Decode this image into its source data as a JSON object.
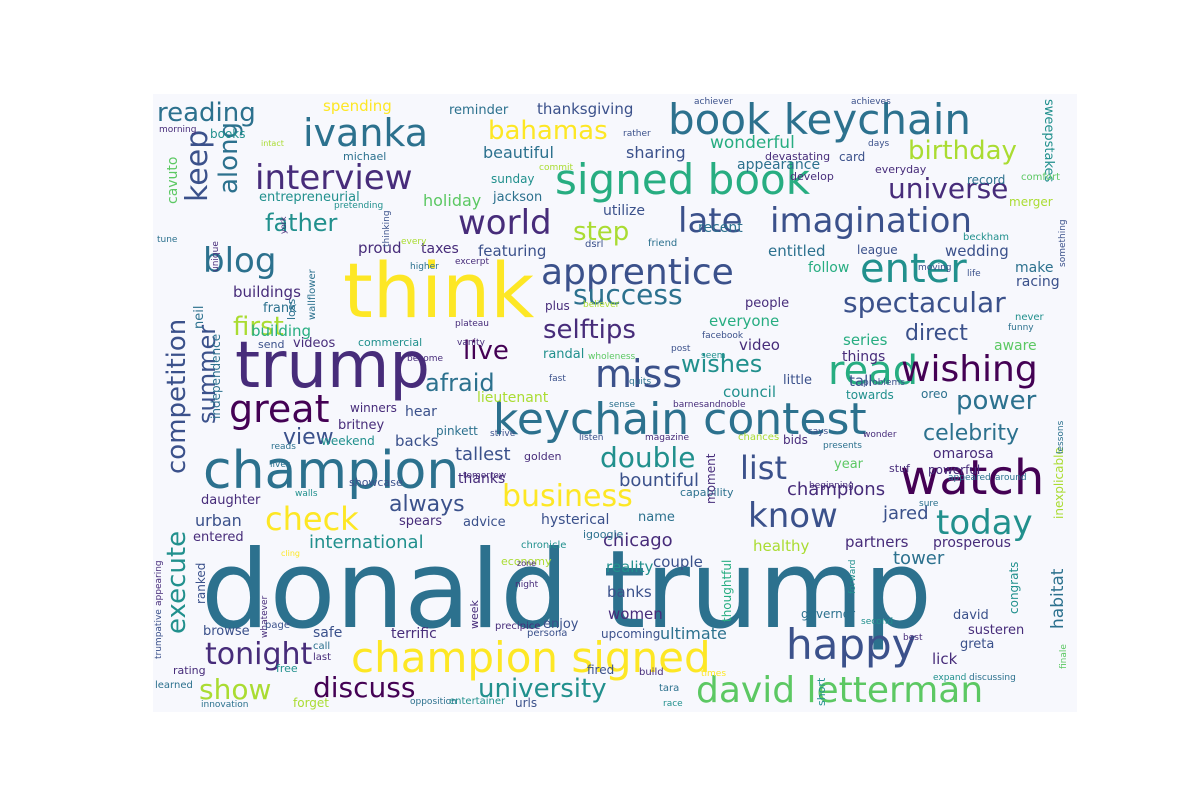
{
  "palette": [
    "#440154",
    "#472c7a",
    "#3b518b",
    "#2c718e",
    "#21908d",
    "#27ad81",
    "#5cc863",
    "#aadc32",
    "#fde725"
  ],
  "words": [
    {
      "text": "donald trump",
      "c": 3
    },
    {
      "text": "think",
      "c": 8
    },
    {
      "text": "trump",
      "c": 1
    },
    {
      "text": "champion",
      "c": 3
    },
    {
      "text": "keychain contest",
      "c": 3
    },
    {
      "text": "watch",
      "c": 0
    },
    {
      "text": "champion signed",
      "c": 8
    },
    {
      "text": "signed book",
      "c": 5
    },
    {
      "text": "book keychain",
      "c": 3
    },
    {
      "text": "happy",
      "c": 2
    },
    {
      "text": "david letterman",
      "c": 6
    },
    {
      "text": "apprentice",
      "c": 2
    },
    {
      "text": "ivanka",
      "c": 3
    },
    {
      "text": "interview",
      "c": 1
    },
    {
      "text": "enter",
      "c": 4
    },
    {
      "text": "read",
      "c": 5
    },
    {
      "text": "great",
      "c": 0
    },
    {
      "text": "wishing",
      "c": 0
    },
    {
      "text": "imagination",
      "c": 2
    },
    {
      "text": "world",
      "c": 1
    },
    {
      "text": "late",
      "c": 2
    },
    {
      "text": "blog",
      "c": 3
    },
    {
      "text": "miss",
      "c": 2
    },
    {
      "text": "today",
      "c": 4
    },
    {
      "text": "know",
      "c": 2
    },
    {
      "text": "business",
      "c": 8
    },
    {
      "text": "check",
      "c": 8
    },
    {
      "text": "list",
      "c": 2
    },
    {
      "text": "double",
      "c": 4
    },
    {
      "text": "competition",
      "c": 2
    },
    {
      "text": "execute",
      "c": 4
    },
    {
      "text": "keep",
      "c": 2
    },
    {
      "text": "reading",
      "c": 3
    },
    {
      "text": "success",
      "c": 3
    },
    {
      "text": "spectacular",
      "c": 2
    },
    {
      "text": "universe",
      "c": 1
    },
    {
      "text": "tonight",
      "c": 1
    },
    {
      "text": "discuss",
      "c": 0
    },
    {
      "text": "show",
      "c": 7
    },
    {
      "text": "university",
      "c": 4
    },
    {
      "text": "bahamas",
      "c": 8
    },
    {
      "text": "birthday",
      "c": 7
    },
    {
      "text": "selftips",
      "c": 1
    },
    {
      "text": "live",
      "c": 0
    },
    {
      "text": "afraid",
      "c": 3
    },
    {
      "text": "wishes",
      "c": 4
    },
    {
      "text": "power",
      "c": 3
    },
    {
      "text": "along",
      "c": 3
    },
    {
      "text": "father",
      "c": 4
    },
    {
      "text": "step",
      "c": 7
    },
    {
      "text": "first",
      "c": 7
    },
    {
      "text": "summer",
      "c": 2
    },
    {
      "text": "view",
      "c": 2
    },
    {
      "text": "always",
      "c": 2
    },
    {
      "text": "celebrity",
      "c": 3
    },
    {
      "text": "direct",
      "c": 2
    },
    {
      "text": "champions",
      "c": 1
    },
    {
      "text": "jared",
      "c": 2
    },
    {
      "text": "tower",
      "c": 3
    },
    {
      "text": "habitat",
      "c": 3
    },
    {
      "text": "ultimate",
      "c": 3
    },
    {
      "text": "chicago",
      "c": 1
    },
    {
      "text": "bountiful",
      "c": 2
    },
    {
      "text": "tallest",
      "c": 2
    },
    {
      "text": "international",
      "c": 4
    },
    {
      "text": "urban",
      "c": 2
    },
    {
      "text": "beautiful",
      "c": 3
    },
    {
      "text": "holiday",
      "c": 6
    },
    {
      "text": "wonderful",
      "c": 5
    },
    {
      "text": "sharing",
      "c": 2
    },
    {
      "text": "spending",
      "c": 8
    },
    {
      "text": "thanksgiving",
      "c": 2
    },
    {
      "text": "reminder",
      "c": 3
    },
    {
      "text": "achiever",
      "c": 2
    },
    {
      "text": "achieves",
      "c": 2
    },
    {
      "text": "morning",
      "c": 1
    },
    {
      "text": "books",
      "c": 4
    },
    {
      "text": "intact",
      "c": 7
    },
    {
      "text": "michael",
      "c": 3
    },
    {
      "text": "cavuto",
      "c": 6
    },
    {
      "text": "entrepreneurial",
      "c": 4
    },
    {
      "text": "sunday",
      "c": 4
    },
    {
      "text": "jackson",
      "c": 3
    },
    {
      "text": "card",
      "c": 2
    },
    {
      "text": "devastating",
      "c": 1
    },
    {
      "text": "appearance",
      "c": 3
    },
    {
      "text": "sweepstakes",
      "c": 4
    },
    {
      "text": "everyday",
      "c": 1
    },
    {
      "text": "days",
      "c": 2
    },
    {
      "text": "rather",
      "c": 2
    },
    {
      "text": "develop",
      "c": 1
    },
    {
      "text": "record",
      "c": 3
    },
    {
      "text": "comfort",
      "c": 6
    },
    {
      "text": "merger",
      "c": 7
    },
    {
      "text": "utilize",
      "c": 2
    },
    {
      "text": "recent",
      "c": 3
    },
    {
      "text": "entitled",
      "c": 3
    },
    {
      "text": "featuring",
      "c": 2
    },
    {
      "text": "taxes",
      "c": 1
    },
    {
      "text": "proud",
      "c": 1
    },
    {
      "text": "wedding",
      "c": 2
    },
    {
      "text": "league",
      "c": 2
    },
    {
      "text": "beckham",
      "c": 4
    },
    {
      "text": "make",
      "c": 3
    },
    {
      "text": "racing",
      "c": 2
    },
    {
      "text": "follow",
      "c": 5
    },
    {
      "text": "buildings",
      "c": 1
    },
    {
      "text": "frank",
      "c": 3
    },
    {
      "text": "neil",
      "c": 3
    },
    {
      "text": "building",
      "c": 5
    },
    {
      "text": "videos",
      "c": 1
    },
    {
      "text": "commercial",
      "c": 4
    },
    {
      "text": "randal",
      "c": 4
    },
    {
      "text": "everyone",
      "c": 5
    },
    {
      "text": "video",
      "c": 1
    },
    {
      "text": "things",
      "c": 1
    },
    {
      "text": "series",
      "c": 5
    },
    {
      "text": "aware",
      "c": 6
    },
    {
      "text": "tall",
      "c": 2
    },
    {
      "text": "council",
      "c": 4
    },
    {
      "text": "towards",
      "c": 4
    },
    {
      "text": "oreo",
      "c": 3
    },
    {
      "text": "omarosa",
      "c": 1
    },
    {
      "text": "powerful",
      "c": 1
    },
    {
      "text": "stuf",
      "c": 1
    },
    {
      "text": "year",
      "c": 6
    },
    {
      "text": "hear",
      "c": 2
    },
    {
      "text": "backs",
      "c": 2
    },
    {
      "text": "pinkett",
      "c": 3
    },
    {
      "text": "britney",
      "c": 1
    },
    {
      "text": "winners",
      "c": 1
    },
    {
      "text": "weekend",
      "c": 4
    },
    {
      "text": "daughter",
      "c": 1
    },
    {
      "text": "thanks",
      "c": 1
    },
    {
      "text": "golden",
      "c": 1
    },
    {
      "text": "spears",
      "c": 1
    },
    {
      "text": "advice",
      "c": 2
    },
    {
      "text": "hysterical",
      "c": 2
    },
    {
      "text": "name",
      "c": 3
    },
    {
      "text": "couple",
      "c": 2
    },
    {
      "text": "reality",
      "c": 4
    },
    {
      "text": "banks",
      "c": 2
    },
    {
      "text": "women",
      "c": 1
    },
    {
      "text": "enjoy",
      "c": 2
    },
    {
      "text": "upcoming",
      "c": 2
    },
    {
      "text": "terrific",
      "c": 1
    },
    {
      "text": "safe",
      "c": 2
    },
    {
      "text": "browse",
      "c": 2
    },
    {
      "text": "entered",
      "c": 1
    },
    {
      "text": "ranked",
      "c": 2
    },
    {
      "text": "healthy",
      "c": 7
    },
    {
      "text": "partners",
      "c": 1
    },
    {
      "text": "prosperous",
      "c": 1
    },
    {
      "text": "lick",
      "c": 1
    },
    {
      "text": "susteren",
      "c": 1
    },
    {
      "text": "greta",
      "c": 2
    },
    {
      "text": "david",
      "c": 2
    },
    {
      "text": "governor",
      "c": 3
    },
    {
      "text": "congrats",
      "c": 4
    },
    {
      "text": "inexplicable",
      "c": 7
    },
    {
      "text": "bids",
      "c": 1
    },
    {
      "text": "economy",
      "c": 7
    },
    {
      "text": "chronicle",
      "c": 4
    },
    {
      "text": "igoogle",
      "c": 3
    },
    {
      "text": "capability",
      "c": 3
    },
    {
      "text": "thoughtful",
      "c": 5
    },
    {
      "text": "week",
      "c": 1
    },
    {
      "text": "precipice",
      "c": 1
    },
    {
      "text": "persona",
      "c": 2
    },
    {
      "text": "trumpative",
      "c": 2
    },
    {
      "text": "appearing",
      "c": 1
    },
    {
      "text": "whatever",
      "c": 1
    },
    {
      "text": "page",
      "c": 2
    },
    {
      "text": "last",
      "c": 1
    },
    {
      "text": "call",
      "c": 3
    },
    {
      "text": "free",
      "c": 4
    },
    {
      "text": "rating",
      "c": 1
    },
    {
      "text": "learned",
      "c": 3
    },
    {
      "text": "innovation",
      "c": 3
    },
    {
      "text": "forget",
      "c": 7
    },
    {
      "text": "opposition",
      "c": 3
    },
    {
      "text": "entertainer",
      "c": 4
    },
    {
      "text": "urls",
      "c": 2
    },
    {
      "text": "tara",
      "c": 3
    },
    {
      "text": "race",
      "c": 4
    },
    {
      "text": "short",
      "c": 4
    },
    {
      "text": "expand",
      "c": 4
    },
    {
      "text": "discussing",
      "c": 3
    },
    {
      "text": "finale",
      "c": 6
    },
    {
      "text": "best",
      "c": 1
    },
    {
      "text": "second",
      "c": 4
    },
    {
      "text": "forward",
      "c": 4
    },
    {
      "text": "fired",
      "c": 2
    },
    {
      "text": "build",
      "c": 1
    },
    {
      "text": "times",
      "c": 8
    },
    {
      "text": "night",
      "c": 1
    },
    {
      "text": "zone",
      "c": 1
    },
    {
      "text": "cling",
      "c": 8
    },
    {
      "text": "walls",
      "c": 4
    },
    {
      "text": "reads",
      "c": 3
    },
    {
      "text": "lives",
      "c": 3
    },
    {
      "text": "showcase",
      "c": 2
    },
    {
      "text": "lieutenant",
      "c": 7
    },
    {
      "text": "independence",
      "c": 3
    },
    {
      "text": "send",
      "c": 2
    },
    {
      "text": "become",
      "c": 1
    },
    {
      "text": "vanity",
      "c": 1
    },
    {
      "text": "plateau",
      "c": 1
    },
    {
      "text": "plus",
      "c": 1
    },
    {
      "text": "believer",
      "c": 7
    },
    {
      "text": "facebook",
      "c": 2
    },
    {
      "text": "people",
      "c": 1
    },
    {
      "text": "post",
      "c": 2
    },
    {
      "text": "wholeness",
      "c": 6
    },
    {
      "text": "fast",
      "c": 2
    },
    {
      "text": "quits",
      "c": 3
    },
    {
      "text": "sense",
      "c": 3
    },
    {
      "text": "barnesandnoble",
      "c": 1
    },
    {
      "text": "seem",
      "c": 4
    },
    {
      "text": "little",
      "c": 2
    },
    {
      "text": "strive",
      "c": 2
    },
    {
      "text": "listen",
      "c": 2
    },
    {
      "text": "magazine",
      "c": 1
    },
    {
      "text": "chances",
      "c": 7
    },
    {
      "text": "says",
      "c": 2
    },
    {
      "text": "presents",
      "c": 3
    },
    {
      "text": "lessons",
      "c": 3
    },
    {
      "text": "tomorrow",
      "c": 1
    },
    {
      "text": "beginning",
      "c": 1
    },
    {
      "text": "appeared",
      "c": 3
    },
    {
      "text": "around",
      "c": 3
    },
    {
      "text": "sure",
      "c": 3
    },
    {
      "text": "moment",
      "c": 1
    },
    {
      "text": "wonder",
      "c": 1
    },
    {
      "text": "problems",
      "c": 2
    },
    {
      "text": "something",
      "c": 2
    },
    {
      "text": "never",
      "c": 4
    },
    {
      "text": "funny",
      "c": 3
    },
    {
      "text": "life",
      "c": 2
    },
    {
      "text": "moving",
      "c": 2
    },
    {
      "text": "higher",
      "c": 3
    },
    {
      "text": "excerpt",
      "c": 1
    },
    {
      "text": "dsrl",
      "c": 2
    },
    {
      "text": "friend",
      "c": 3
    },
    {
      "text": "loss",
      "c": 3
    },
    {
      "text": "wallflower",
      "c": 3
    },
    {
      "text": "thinking",
      "c": 2
    },
    {
      "text": "every",
      "c": 7
    },
    {
      "text": "pretending",
      "c": 4
    },
    {
      "text": "commit",
      "c": 7
    },
    {
      "text": "unique",
      "c": 1
    },
    {
      "text": "york",
      "c": 1
    },
    {
      "text": "tune",
      "c": 3
    }
  ]
}
